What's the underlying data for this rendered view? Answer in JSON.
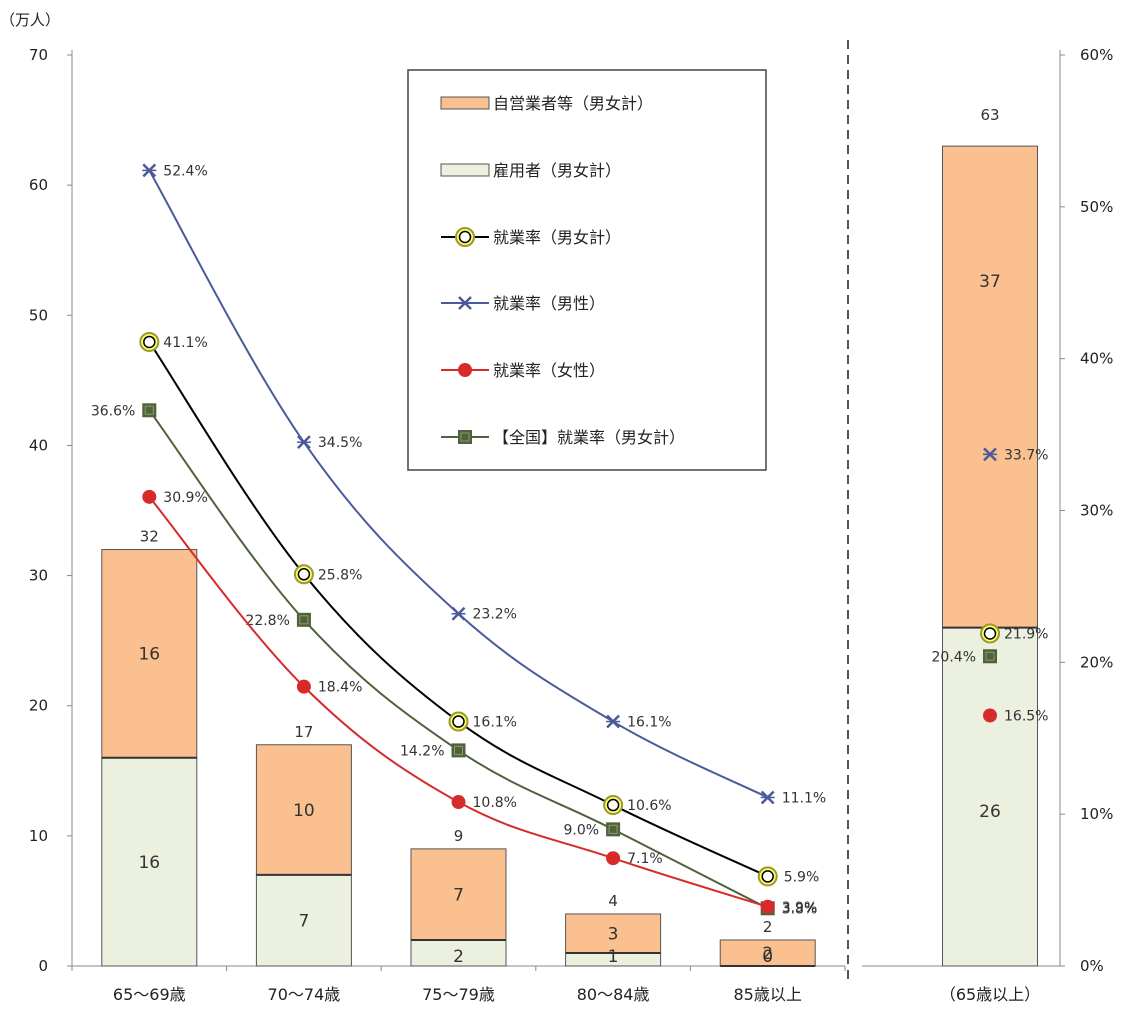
{
  "chart_data": [
    {
      "type": "bar",
      "y_unit": "（万人）",
      "y_left_ticks": [
        "0",
        "10",
        "20",
        "30",
        "40",
        "50",
        "60",
        "70"
      ],
      "y_right_ticks": [
        "0%",
        "10%",
        "20%",
        "30%",
        "40%",
        "50%",
        "60%"
      ],
      "ylim_left": [
        0,
        70
      ],
      "ylim_right": [
        0,
        60
      ],
      "categories": [
        "65～69歳",
        "70～74歳",
        "75～79歳",
        "80～84歳",
        "85歳以上"
      ],
      "stack": [
        {
          "name": "雇用者（男女計）",
          "color": "#ebf0df",
          "values": [
            16,
            7,
            2,
            1,
            0
          ],
          "labels": [
            "16",
            "7",
            "2",
            "1",
            "0"
          ]
        },
        {
          "name": "自営業者等（男女計）",
          "color": "#fac090",
          "values": [
            16,
            10,
            7,
            3,
            2
          ],
          "labels": [
            "16",
            "10",
            "7",
            "3",
            "2"
          ]
        }
      ],
      "totals": [
        "32",
        "17",
        "9",
        "4",
        "2"
      ],
      "lines": [
        {
          "name": "就業率（男女計）",
          "color": "#000000",
          "marker": "circle-open",
          "values": [
            41.1,
            25.8,
            16.1,
            10.6,
            5.9
          ],
          "labels": [
            "41.1%",
            "25.8%",
            "16.1%",
            "10.6%",
            "5.9%"
          ]
        },
        {
          "name": "就業率（男性）",
          "color": "#4a5a9a",
          "marker": "x",
          "values": [
            52.4,
            34.5,
            23.2,
            16.1,
            11.1
          ],
          "labels": [
            "52.4%",
            "34.5%",
            "23.2%",
            "16.1%",
            "11.1%"
          ]
        },
        {
          "name": "就業率（女性）",
          "color": "#d72b2b",
          "marker": "dot",
          "values": [
            30.9,
            18.4,
            10.8,
            7.1,
            3.9
          ],
          "labels": [
            "30.9%",
            "18.4%",
            "10.8%",
            "7.1%",
            "3.9%"
          ]
        },
        {
          "name": "【全国】就業率（男女計）",
          "color": "#50613d",
          "marker": "square",
          "values": [
            36.6,
            22.8,
            14.2,
            9.0,
            3.8
          ],
          "labels": [
            "36.6%",
            "22.8%",
            "14.2%",
            "9.0%",
            "3.8%"
          ]
        }
      ],
      "legend_order": [
        "自営業者等（男女計）",
        "雇用者（男女計）",
        "就業率（男女計）",
        "就業率（男性）",
        "就業率（女性）",
        "【全国】就業率（男女計）"
      ],
      "legend_position": "top-center"
    },
    {
      "type": "bar",
      "categories": [
        "（65歳以上）"
      ],
      "stack": [
        {
          "name": "雇用者（男女計）",
          "color": "#ebf0df",
          "values": [
            26
          ],
          "labels": [
            "26"
          ]
        },
        {
          "name": "自営業者等（男女計）",
          "color": "#fac090",
          "values": [
            37
          ],
          "labels": [
            "37"
          ]
        }
      ],
      "totals": [
        "63"
      ],
      "lines": [
        {
          "name": "就業率（男女計）",
          "values": [
            21.9
          ],
          "labels": [
            "21.9%"
          ]
        },
        {
          "name": "就業率（男性）",
          "values": [
            33.7
          ],
          "labels": [
            "33.7%"
          ]
        },
        {
          "name": "就業率（女性）",
          "values": [
            16.5
          ],
          "labels": [
            "16.5%"
          ]
        },
        {
          "name": "【全国】就業率（男女計）",
          "values": [
            20.4
          ],
          "labels": [
            "20.4%"
          ]
        }
      ]
    }
  ]
}
